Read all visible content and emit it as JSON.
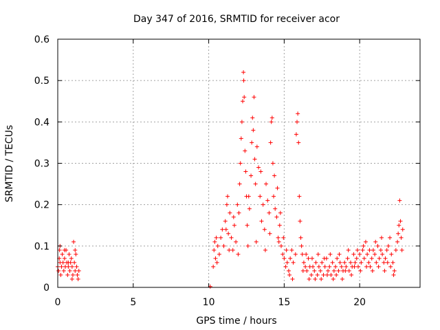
{
  "chart_data": {
    "type": "scatter",
    "title": "Day 347 of 2016, SRMTID for receiver acor",
    "xlabel": "GPS time / hours",
    "ylabel": "SRMTID / TECUs",
    "xlim": [
      0,
      24
    ],
    "ylim": [
      0,
      0.6
    ],
    "xticks": [
      0,
      5,
      10,
      15,
      20
    ],
    "xtick_labels": [
      "0",
      "5",
      "10",
      "15",
      "20"
    ],
    "yticks": [
      0,
      0.1,
      0.2,
      0.3,
      0.4,
      0.5,
      0.6
    ],
    "ytick_labels": [
      "0",
      "0.1",
      "0.2",
      "0.3",
      "0.4",
      "0.5",
      "0.6"
    ],
    "grid": true,
    "marker": "+",
    "color": "#ff0000",
    "series": [
      {
        "name": "SRMTID",
        "points": [
          [
            0.0,
            0.05
          ],
          [
            0.05,
            0.04
          ],
          [
            0.1,
            0.07
          ],
          [
            0.12,
            0.09
          ],
          [
            0.15,
            0.06
          ],
          [
            0.2,
            0.03
          ],
          [
            0.25,
            0.05
          ],
          [
            0.3,
            0.08
          ],
          [
            0.35,
            0.06
          ],
          [
            0.4,
            0.04
          ],
          [
            0.45,
            0.07
          ],
          [
            0.5,
            0.05
          ],
          [
            0.55,
            0.09
          ],
          [
            0.6,
            0.06
          ],
          [
            0.65,
            0.03
          ],
          [
            0.7,
            0.05
          ],
          [
            0.75,
            0.08
          ],
          [
            0.8,
            0.04
          ],
          [
            0.85,
            0.06
          ],
          [
            0.9,
            0.07
          ],
          [
            0.95,
            0.05
          ],
          [
            1.0,
            0.03
          ],
          [
            1.05,
            0.11
          ],
          [
            1.1,
            0.06
          ],
          [
            1.15,
            0.04
          ],
          [
            1.2,
            0.08
          ],
          [
            1.25,
            0.05
          ],
          [
            1.3,
            0.03
          ],
          [
            1.35,
            0.02
          ],
          [
            1.4,
            0.04
          ],
          [
            0.15,
            0.1
          ],
          [
            0.45,
            0.09
          ],
          [
            0.7,
            0.06
          ],
          [
            0.95,
            0.02
          ],
          [
            1.15,
            0.09
          ],
          [
            10.1,
            0.002
          ],
          [
            10.3,
            0.05
          ],
          [
            10.35,
            0.09
          ],
          [
            10.4,
            0.11
          ],
          [
            10.45,
            0.07
          ],
          [
            10.5,
            0.12
          ],
          [
            10.55,
            0.06
          ],
          [
            10.6,
            0.1
          ],
          [
            10.7,
            0.08
          ],
          [
            10.8,
            0.12
          ],
          [
            10.9,
            0.14
          ],
          [
            11.0,
            0.1
          ],
          [
            11.1,
            0.16
          ],
          [
            11.2,
            0.2
          ],
          [
            11.25,
            0.22
          ],
          [
            11.3,
            0.13
          ],
          [
            11.4,
            0.18
          ],
          [
            11.5,
            0.12
          ],
          [
            11.6,
            0.09
          ],
          [
            11.7,
            0.15
          ],
          [
            11.8,
            0.11
          ],
          [
            11.9,
            0.2
          ],
          [
            12.0,
            0.18
          ],
          [
            12.05,
            0.25
          ],
          [
            12.1,
            0.3
          ],
          [
            12.15,
            0.36
          ],
          [
            12.2,
            0.4
          ],
          [
            12.25,
            0.45
          ],
          [
            12.3,
            0.52
          ],
          [
            12.32,
            0.5
          ],
          [
            12.35,
            0.46
          ],
          [
            12.4,
            0.33
          ],
          [
            12.45,
            0.28
          ],
          [
            12.5,
            0.22
          ],
          [
            12.55,
            0.15
          ],
          [
            12.6,
            0.1
          ],
          [
            12.7,
            0.19
          ],
          [
            12.8,
            0.27
          ],
          [
            12.85,
            0.35
          ],
          [
            12.9,
            0.41
          ],
          [
            12.95,
            0.38
          ],
          [
            13.0,
            0.46
          ],
          [
            13.05,
            0.31
          ],
          [
            13.1,
            0.25
          ],
          [
            13.2,
            0.34
          ],
          [
            13.3,
            0.29
          ],
          [
            13.4,
            0.22
          ],
          [
            13.5,
            0.16
          ],
          [
            13.6,
            0.2
          ],
          [
            13.7,
            0.14
          ],
          [
            13.8,
            0.25
          ],
          [
            13.9,
            0.21
          ],
          [
            14.0,
            0.18
          ],
          [
            14.1,
            0.35
          ],
          [
            14.15,
            0.4
          ],
          [
            14.2,
            0.41
          ],
          [
            14.25,
            0.3
          ],
          [
            14.3,
            0.22
          ],
          [
            14.4,
            0.19
          ],
          [
            14.5,
            0.17
          ],
          [
            14.6,
            0.12
          ],
          [
            14.7,
            0.15
          ],
          [
            14.8,
            0.1
          ],
          [
            14.9,
            0.08
          ],
          [
            15.0,
            0.07
          ],
          [
            15.1,
            0.05
          ],
          [
            15.2,
            0.06
          ],
          [
            15.3,
            0.04
          ],
          [
            15.4,
            0.07
          ],
          [
            15.5,
            0.09
          ],
          [
            15.6,
            0.06
          ],
          [
            15.8,
            0.37
          ],
          [
            15.85,
            0.4
          ],
          [
            15.9,
            0.42
          ],
          [
            15.95,
            0.35
          ],
          [
            16.0,
            0.22
          ],
          [
            16.05,
            0.16
          ],
          [
            16.1,
            0.12
          ],
          [
            16.2,
            0.08
          ],
          [
            16.3,
            0.06
          ],
          [
            16.4,
            0.05
          ],
          [
            16.5,
            0.04
          ],
          [
            16.6,
            0.07
          ],
          [
            16.7,
            0.05
          ],
          [
            16.8,
            0.03
          ],
          [
            16.9,
            0.05
          ],
          [
            17.0,
            0.04
          ],
          [
            17.1,
            0.06
          ],
          [
            17.2,
            0.03
          ],
          [
            17.3,
            0.05
          ],
          [
            17.4,
            0.04
          ],
          [
            17.5,
            0.06
          ],
          [
            17.6,
            0.03
          ],
          [
            17.7,
            0.05
          ],
          [
            17.8,
            0.07
          ],
          [
            17.9,
            0.04
          ],
          [
            18.0,
            0.05
          ],
          [
            18.1,
            0.03
          ],
          [
            18.2,
            0.06
          ],
          [
            18.3,
            0.04
          ],
          [
            18.4,
            0.05
          ],
          [
            18.5,
            0.07
          ],
          [
            18.6,
            0.04
          ],
          [
            18.7,
            0.06
          ],
          [
            18.8,
            0.05
          ],
          [
            18.9,
            0.04
          ],
          [
            19.0,
            0.06
          ],
          [
            19.1,
            0.05
          ],
          [
            19.2,
            0.07
          ],
          [
            19.3,
            0.04
          ],
          [
            19.4,
            0.06
          ],
          [
            19.5,
            0.05
          ],
          [
            19.6,
            0.08
          ],
          [
            19.7,
            0.06
          ],
          [
            19.8,
            0.07
          ],
          [
            19.9,
            0.05
          ],
          [
            20.0,
            0.08
          ],
          [
            20.1,
            0.06
          ],
          [
            20.2,
            0.09
          ],
          [
            20.3,
            0.07
          ],
          [
            20.4,
            0.11
          ],
          [
            20.5,
            0.08
          ],
          [
            20.6,
            0.06
          ],
          [
            20.7,
            0.05
          ],
          [
            20.8,
            0.07
          ],
          [
            20.9,
            0.09
          ],
          [
            21.0,
            0.08
          ],
          [
            21.1,
            0.06
          ],
          [
            21.2,
            0.1
          ],
          [
            21.3,
            0.07
          ],
          [
            21.4,
            0.09
          ],
          [
            21.5,
            0.08
          ],
          [
            21.6,
            0.06
          ],
          [
            21.7,
            0.07
          ],
          [
            21.8,
            0.09
          ],
          [
            21.9,
            0.1
          ],
          [
            22.0,
            0.12
          ],
          [
            22.1,
            0.08
          ],
          [
            22.2,
            0.06
          ],
          [
            22.3,
            0.04
          ],
          [
            22.4,
            0.09
          ],
          [
            22.5,
            0.11
          ],
          [
            22.55,
            0.13
          ],
          [
            22.6,
            0.15
          ],
          [
            22.65,
            0.21
          ],
          [
            22.7,
            0.16
          ],
          [
            22.75,
            0.12
          ],
          [
            22.8,
            0.09
          ],
          [
            22.85,
            0.14
          ],
          [
            11.15,
            0.14
          ],
          [
            11.35,
            0.09
          ],
          [
            11.65,
            0.17
          ],
          [
            11.95,
            0.08
          ],
          [
            12.65,
            0.22
          ],
          [
            13.15,
            0.11
          ],
          [
            13.45,
            0.28
          ],
          [
            13.75,
            0.09
          ],
          [
            14.05,
            0.13
          ],
          [
            14.35,
            0.27
          ],
          [
            14.55,
            0.24
          ],
          [
            14.65,
            0.11
          ],
          [
            14.75,
            0.18
          ],
          [
            14.95,
            0.12
          ],
          [
            15.15,
            0.09
          ],
          [
            15.35,
            0.03
          ],
          [
            15.55,
            0.02
          ],
          [
            15.75,
            0.08
          ],
          [
            16.15,
            0.1
          ],
          [
            16.25,
            0.04
          ],
          [
            16.45,
            0.08
          ],
          [
            16.65,
            0.02
          ],
          [
            16.85,
            0.07
          ],
          [
            17.05,
            0.02
          ],
          [
            17.25,
            0.08
          ],
          [
            17.45,
            0.02
          ],
          [
            17.65,
            0.07
          ],
          [
            17.85,
            0.03
          ],
          [
            18.05,
            0.08
          ],
          [
            18.25,
            0.02
          ],
          [
            18.45,
            0.03
          ],
          [
            18.65,
            0.08
          ],
          [
            18.85,
            0.02
          ],
          [
            19.05,
            0.04
          ],
          [
            19.25,
            0.09
          ],
          [
            19.45,
            0.03
          ],
          [
            19.65,
            0.05
          ],
          [
            19.85,
            0.09
          ],
          [
            20.05,
            0.04
          ],
          [
            20.25,
            0.1
          ],
          [
            20.45,
            0.05
          ],
          [
            20.65,
            0.09
          ],
          [
            20.85,
            0.04
          ],
          [
            21.05,
            0.11
          ],
          [
            21.25,
            0.05
          ],
          [
            21.45,
            0.12
          ],
          [
            21.65,
            0.04
          ],
          [
            21.85,
            0.06
          ],
          [
            22.05,
            0.05
          ],
          [
            22.25,
            0.03
          ]
        ]
      }
    ]
  }
}
